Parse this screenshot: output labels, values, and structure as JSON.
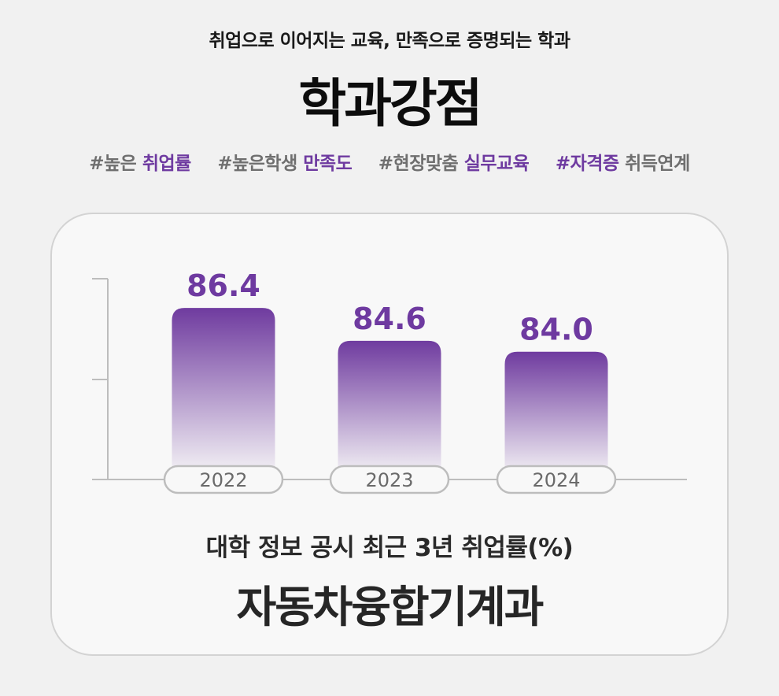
{
  "header": {
    "subtitle": "취업으로 이어지는 교육, 만족으로 증명되는 학과",
    "title": "학과강점"
  },
  "tags": [
    {
      "pre": "#높은 ",
      "accent": "취업률",
      "post": ""
    },
    {
      "pre": "#높은학생 ",
      "accent": "만족도",
      "post": ""
    },
    {
      "pre": "#현장맞춤 ",
      "accent": "실무교육",
      "post": ""
    },
    {
      "pre": "",
      "accent": "#자격증",
      "post": " 취득연계"
    }
  ],
  "colors": {
    "accent": "#6e3aa0",
    "bar_top": "#6f3b9f",
    "axis": "#bdbdbd"
  },
  "chart_data": {
    "type": "bar",
    "categories": [
      "2022",
      "2023",
      "2024"
    ],
    "values": [
      86.4,
      84.6,
      84.0
    ],
    "value_labels": [
      "86.4",
      "84.6",
      "84.0"
    ],
    "title": "대학 정보 공시 최근 3년 취업률(%)",
    "xlabel": "",
    "ylabel": "",
    "ylim": [
      77,
      88
    ],
    "grid": false
  },
  "footer": {
    "department": "자동차융합기계과"
  }
}
